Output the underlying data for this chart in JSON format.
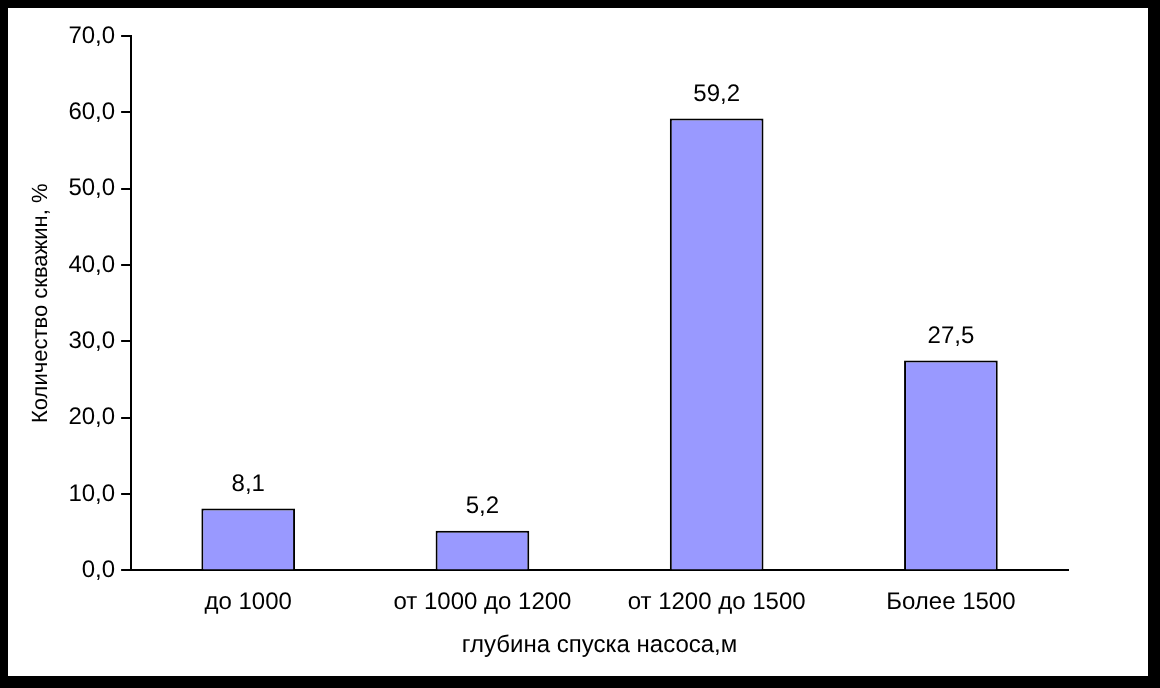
{
  "chart_data": {
    "type": "bar",
    "xlabel": "глубина спуска насоса,м",
    "ylabel": "Количество скважин, %",
    "categories": [
      "до 1000",
      "от 1000 до 1200",
      "от 1200 до 1500",
      "Более 1500"
    ],
    "values": [
      8.1,
      5.2,
      59.2,
      27.5
    ],
    "value_labels": [
      "8,1",
      "5,2",
      "59,2",
      "27,5"
    ],
    "color": "#9999ff",
    "ylim": [
      0,
      70
    ],
    "yticks": [
      {
        "value": 0,
        "label": "0,0"
      },
      {
        "value": 10,
        "label": "10,0"
      },
      {
        "value": 20,
        "label": "20,0"
      },
      {
        "value": 30,
        "label": "30,0"
      },
      {
        "value": 40,
        "label": "40,0"
      },
      {
        "value": 50,
        "label": "50,0"
      },
      {
        "value": 60,
        "label": "60,0"
      },
      {
        "value": 70,
        "label": "70,0"
      }
    ],
    "grid": false,
    "legend": false
  }
}
